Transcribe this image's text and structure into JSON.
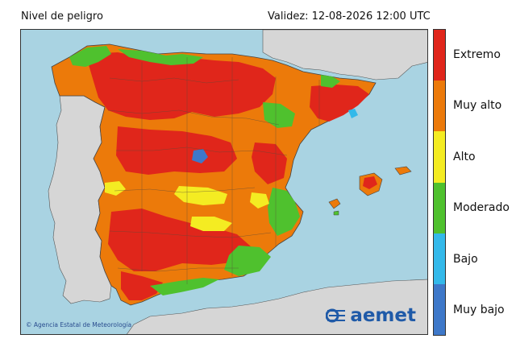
{
  "header": {
    "title": "Nivel de peligro",
    "validity": "Validez: 12-08-2026 12:00 UTC"
  },
  "map": {
    "copyright": "© Agencia Estatal de Meteorología",
    "logo_text": "aemet",
    "colors": {
      "sea": "#a9d3e2",
      "foreign_land": "#d6d6d6",
      "border": "#555555"
    }
  },
  "legend": {
    "levels": [
      {
        "label": "Extremo",
        "color": "#e0261b"
      },
      {
        "label": "Muy alto",
        "color": "#ec7a0a"
      },
      {
        "label": "Alto",
        "color": "#f4ec22"
      },
      {
        "label": "Moderado",
        "color": "#4fc12e"
      },
      {
        "label": "Bajo",
        "color": "#33b9ea"
      },
      {
        "label": "Muy bajo",
        "color": "#3e78c9"
      }
    ]
  }
}
